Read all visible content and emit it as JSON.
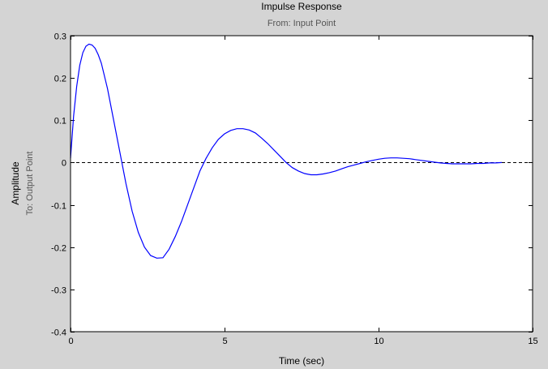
{
  "chart_data": {
    "type": "line",
    "title": "Impulse Response",
    "subtitle": "From: Input Point",
    "xlabel": "Time (sec)",
    "ylabel": "Amplitude",
    "ylabel_sub": "To: Output Point",
    "xlim": [
      0,
      15
    ],
    "ylim": [
      -0.4,
      0.3
    ],
    "xticks": [
      0,
      5,
      10,
      15
    ],
    "yticks": [
      -0.4,
      -0.3,
      -0.2,
      -0.1,
      0,
      0.1,
      0.2,
      0.3
    ],
    "xtick_labels": [
      "0",
      "5",
      "10",
      "15"
    ],
    "ytick_labels": [
      "-0.4",
      "-0.3",
      "-0.2",
      "-0.1",
      "0",
      "0.1",
      "0.2",
      "0.3"
    ],
    "grid": false,
    "zero_line": {
      "y": 0,
      "style": "dashed",
      "color": "#000000"
    },
    "series": [
      {
        "color": "#0000ff",
        "x": [
          0,
          0.05,
          0.1,
          0.2,
          0.3,
          0.4,
          0.5,
          0.6,
          0.7,
          0.8,
          0.9,
          1.0,
          1.2,
          1.4,
          1.6,
          1.8,
          2.0,
          2.2,
          2.4,
          2.6,
          2.8,
          3.0,
          3.2,
          3.4,
          3.6,
          3.8,
          4.0,
          4.2,
          4.4,
          4.6,
          4.8,
          5.0,
          5.2,
          5.4,
          5.6,
          5.8,
          6.0,
          6.2,
          6.4,
          6.6,
          6.8,
          7.0,
          7.2,
          7.4,
          7.6,
          7.8,
          8.0,
          8.2,
          8.4,
          8.6,
          8.8,
          9.0,
          9.2,
          9.4,
          9.6,
          9.8,
          10.0,
          10.2,
          10.4,
          10.6,
          10.8,
          11.0,
          11.2,
          11.4,
          11.6,
          11.8,
          12.0,
          12.2,
          12.4,
          12.6,
          12.8,
          13.0,
          13.2,
          13.4,
          13.6,
          13.8,
          14.0
        ],
        "y": [
          0.01,
          0.06,
          0.11,
          0.18,
          0.23,
          0.26,
          0.275,
          0.28,
          0.278,
          0.27,
          0.255,
          0.235,
          0.175,
          0.1,
          0.025,
          -0.05,
          -0.115,
          -0.165,
          -0.2,
          -0.22,
          -0.226,
          -0.225,
          -0.205,
          -0.175,
          -0.14,
          -0.1,
          -0.06,
          -0.02,
          0.01,
          0.035,
          0.055,
          0.068,
          0.076,
          0.08,
          0.08,
          0.077,
          0.07,
          0.058,
          0.045,
          0.03,
          0.015,
          0.0,
          -0.012,
          -0.02,
          -0.026,
          -0.029,
          -0.029,
          -0.027,
          -0.024,
          -0.02,
          -0.015,
          -0.01,
          -0.006,
          -0.002,
          0.002,
          0.005,
          0.008,
          0.01,
          0.011,
          0.011,
          0.01,
          0.009,
          0.007,
          0.005,
          0.003,
          0.001,
          -0.001,
          -0.002,
          -0.003,
          -0.003,
          -0.003,
          -0.003,
          -0.002,
          -0.002,
          -0.001,
          -0.001,
          0.0
        ]
      }
    ]
  }
}
